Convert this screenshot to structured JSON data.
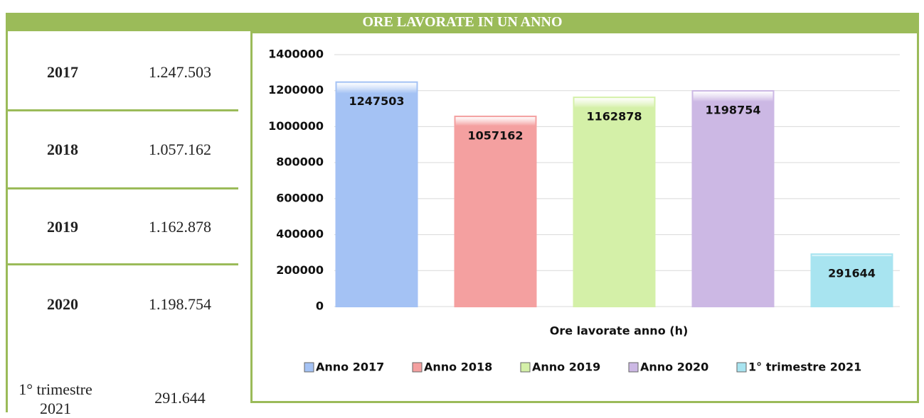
{
  "header": {
    "title": "ORE LAVORATE IN UN ANNO"
  },
  "table": {
    "rows": [
      [
        "2017",
        "1.247.503"
      ],
      [
        "2018",
        "1.057.162"
      ],
      [
        "2019",
        "1.162.878"
      ],
      [
        "2020",
        "1.198.754"
      ],
      [
        "1° trimestre 2021",
        "291.644"
      ]
    ]
  },
  "chart_data": {
    "type": "bar",
    "x_label": "Ore lavorate anno (h)",
    "series": [
      {
        "name": "Anno 2017",
        "color": "#a4c2f4",
        "values": [
          1247503
        ]
      },
      {
        "name": "Anno 2018",
        "color": "#f4a0a0",
        "values": [
          1057162
        ]
      },
      {
        "name": "Anno 2019",
        "color": "#d4f0a8",
        "values": [
          1162878
        ]
      },
      {
        "name": "Anno 2020",
        "color": "#ccb8e4",
        "values": [
          1198754
        ]
      },
      {
        "name": "1° trimestre 2021",
        "color": "#a8e4f0",
        "values": [
          291644
        ]
      }
    ],
    "ylim": [
      0,
      1400000
    ],
    "yticks": [
      0,
      200000,
      400000,
      600000,
      800000,
      1000000,
      1200000,
      1400000
    ],
    "grid": true
  }
}
